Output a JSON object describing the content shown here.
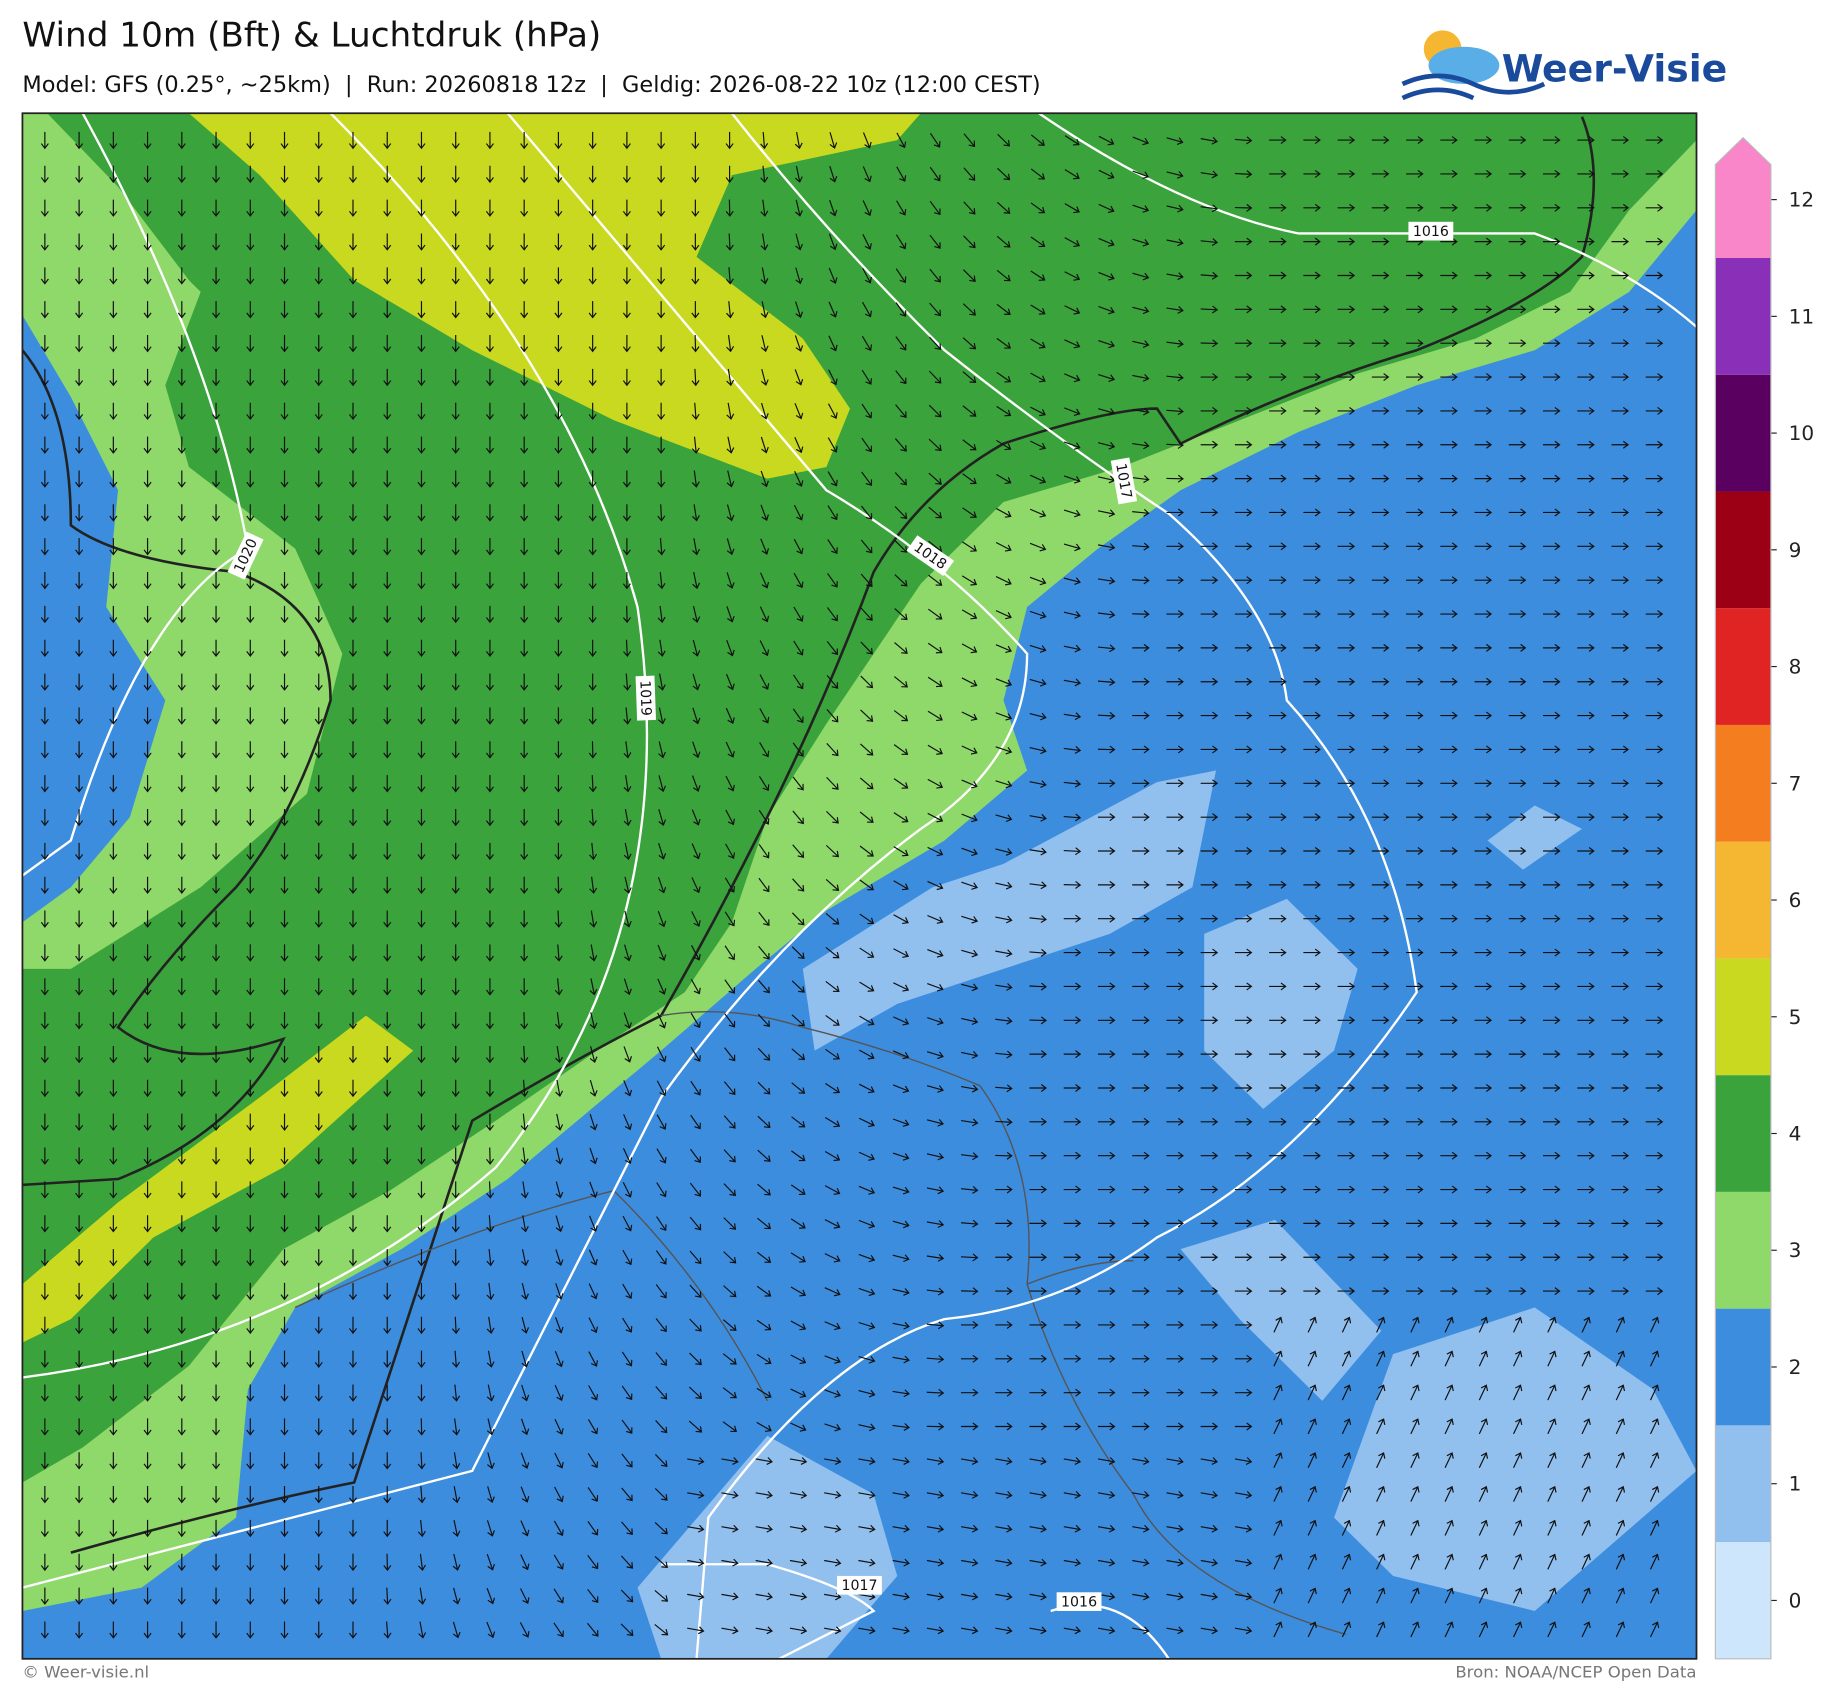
{
  "header": {
    "title": "Wind 10m (Bft) & Luchtdruk (hPa)",
    "subtitle": "Model: GFS (0.25°, ~25km)  |  Run: 20260818 12z  |  Geldig: 2026-08-22 10z (12:00 CEST)",
    "logo": "Weer-Visie"
  },
  "isobars": {
    "labels": [
      "1016",
      "1017",
      "1018",
      "1019",
      "1020",
      "1017",
      "1016"
    ]
  },
  "colorbar": {
    "ticks": [
      0,
      1,
      2,
      3,
      4,
      5,
      6,
      7,
      8,
      9,
      10,
      11,
      12
    ],
    "colors": [
      "#cde6fb",
      "#91c0ef",
      "#3d8ddf",
      "#8fd86a",
      "#3ba33b",
      "#c9d920",
      "#f5b731",
      "#f47d20",
      "#e02424",
      "#9b0014",
      "#5a0060",
      "#8a2fb8",
      "#f986c8"
    ]
  },
  "footer": {
    "left": "© Weer-visie.nl",
    "right": "Bron: NOAA/NCEP Open Data"
  }
}
